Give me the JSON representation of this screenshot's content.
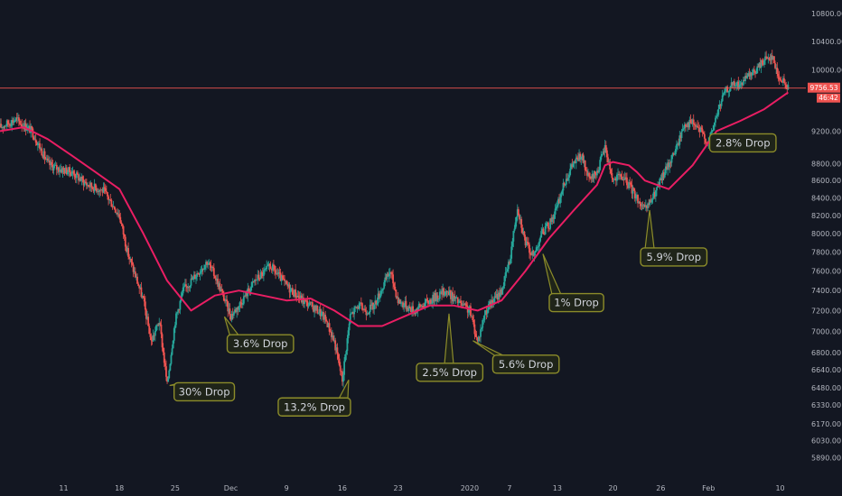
{
  "colors": {
    "background": "#131722",
    "axis_text": "#b2b5be",
    "up": "#26a69a",
    "down": "#ef5350",
    "moving_average": "#e91e63",
    "annotation_border": "#8c8c2a",
    "annotation_fill": "#1f2419",
    "price_line": "#ef5350"
  },
  "chart_data": {
    "type": "line",
    "chart_kind": "candlestick price chart with moving average",
    "y_scale": "log",
    "ylim": [
      5800,
      10950
    ],
    "y_ticks": [
      {
        "value": 5890,
        "label": "5890.00"
      },
      {
        "value": 6030,
        "label": "6030.00"
      },
      {
        "value": 6170,
        "label": "6170.00"
      },
      {
        "value": 6330,
        "label": "6330.00"
      },
      {
        "value": 6480,
        "label": "6480.00"
      },
      {
        "value": 6640,
        "label": "6640.00"
      },
      {
        "value": 6800,
        "label": "6800.00"
      },
      {
        "value": 7000,
        "label": "7000.00"
      },
      {
        "value": 7200,
        "label": "7200.00"
      },
      {
        "value": 7400,
        "label": "7400.00"
      },
      {
        "value": 7600,
        "label": "7600.00"
      },
      {
        "value": 7800,
        "label": "7800.00"
      },
      {
        "value": 8000,
        "label": "8000.00"
      },
      {
        "value": 8200,
        "label": "8200.00"
      },
      {
        "value": 8400,
        "label": "8400.00"
      },
      {
        "value": 8600,
        "label": "8600.00"
      },
      {
        "value": 8800,
        "label": "8800.00"
      },
      {
        "value": 9200,
        "label": "9200.00"
      },
      {
        "value": 10000,
        "label": "10000.00"
      },
      {
        "value": 10400,
        "label": "10400.00"
      },
      {
        "value": 10800,
        "label": "10800.00"
      }
    ],
    "x_ticks": [
      {
        "day": 11,
        "label": "11"
      },
      {
        "day": 18,
        "label": "18"
      },
      {
        "day": 25,
        "label": "25"
      },
      {
        "day": 32,
        "label": "Dec"
      },
      {
        "day": 39,
        "label": "9"
      },
      {
        "day": 46,
        "label": "16"
      },
      {
        "day": 53,
        "label": "23"
      },
      {
        "day": 62,
        "label": "2020"
      },
      {
        "day": 67,
        "label": "7"
      },
      {
        "day": 73,
        "label": "13"
      },
      {
        "day": 80,
        "label": "20"
      },
      {
        "day": 86,
        "label": "26"
      },
      {
        "day": 92,
        "label": "Feb"
      },
      {
        "day": 101,
        "label": "10"
      }
    ],
    "x_domain": [
      3,
      104
    ],
    "price_series": {
      "name": "",
      "x": [
        3,
        5,
        7,
        9,
        10,
        12,
        14,
        16,
        18,
        19,
        21,
        22,
        23,
        24,
        25,
        26,
        27,
        29,
        30,
        31,
        32,
        33,
        35,
        37,
        39,
        41,
        43,
        44,
        45,
        46,
        47,
        48,
        49,
        50,
        52,
        53,
        54,
        55,
        57,
        59,
        61,
        62,
        63,
        64,
        66,
        67,
        68,
        69,
        70,
        71,
        72,
        73,
        74,
        75,
        76,
        77,
        78,
        79,
        80,
        81,
        82,
        83,
        84,
        85,
        86,
        87,
        88,
        89,
        90,
        91,
        92,
        93,
        94,
        95,
        96,
        97,
        98,
        99,
        100,
        100.5,
        101,
        101.5,
        102
      ],
      "y": [
        9250,
        9350,
        9200,
        8800,
        8750,
        8700,
        8550,
        8480,
        8200,
        7800,
        7300,
        6900,
        7100,
        6500,
        7100,
        7400,
        7500,
        7700,
        7550,
        7350,
        7150,
        7250,
        7500,
        7650,
        7450,
        7300,
        7200,
        7100,
        6900,
        6550,
        7150,
        7250,
        7200,
        7250,
        7600,
        7300,
        7250,
        7200,
        7300,
        7400,
        7250,
        7200,
        6900,
        7200,
        7400,
        7700,
        8300,
        7900,
        7750,
        8000,
        8100,
        8300,
        8600,
        8800,
        8900,
        8600,
        8700,
        9000,
        8600,
        8650,
        8550,
        8400,
        8250,
        8400,
        8600,
        8800,
        9000,
        9300,
        9300,
        9200,
        9050,
        9400,
        9700,
        9800,
        9800,
        9900,
        10000,
        10150,
        10200,
        10000,
        9880,
        9820,
        9756.53
      ]
    },
    "moving_average": {
      "name": "",
      "x": [
        3,
        6,
        9,
        12,
        15,
        18,
        21,
        24,
        27,
        30,
        33,
        36,
        39,
        42,
        45,
        48,
        51,
        54,
        57,
        60,
        63,
        66,
        69,
        72,
        75,
        78,
        79,
        80,
        81,
        82,
        83,
        84,
        87,
        90,
        93,
        96,
        99,
        102
      ],
      "y": [
        9200,
        9250,
        9100,
        8900,
        8700,
        8500,
        8000,
        7500,
        7200,
        7350,
        7400,
        7350,
        7300,
        7320,
        7200,
        7050,
        7050,
        7150,
        7250,
        7250,
        7200,
        7300,
        7600,
        7950,
        8250,
        8550,
        8780,
        8820,
        8800,
        8780,
        8700,
        8600,
        8500,
        8780,
        9200,
        9330,
        9480,
        9700
      ]
    },
    "current_price": {
      "value": 9756.53,
      "label": "9756.53"
    },
    "current_price_countdown": "46:42",
    "annotations": [
      {
        "label": "30% Drop",
        "day": 24.3,
        "price": 6500
      },
      {
        "label": "3.6% Drop",
        "day": 31.2,
        "price": 7140
      },
      {
        "label": "13.2% Drop",
        "day": 46.8,
        "price": 6550
      },
      {
        "label": "2.5% Drop",
        "day": 59.4,
        "price": 7170
      },
      {
        "label": "5.6% Drop",
        "day": 62.4,
        "price": 6910
      },
      {
        "label": "1% Drop",
        "day": 71.2,
        "price": 7780
      },
      {
        "label": "5.9% Drop",
        "day": 84.6,
        "price": 8260
      },
      {
        "label": "2.8% Drop",
        "day": 92.6,
        "price": 9120
      }
    ]
  }
}
